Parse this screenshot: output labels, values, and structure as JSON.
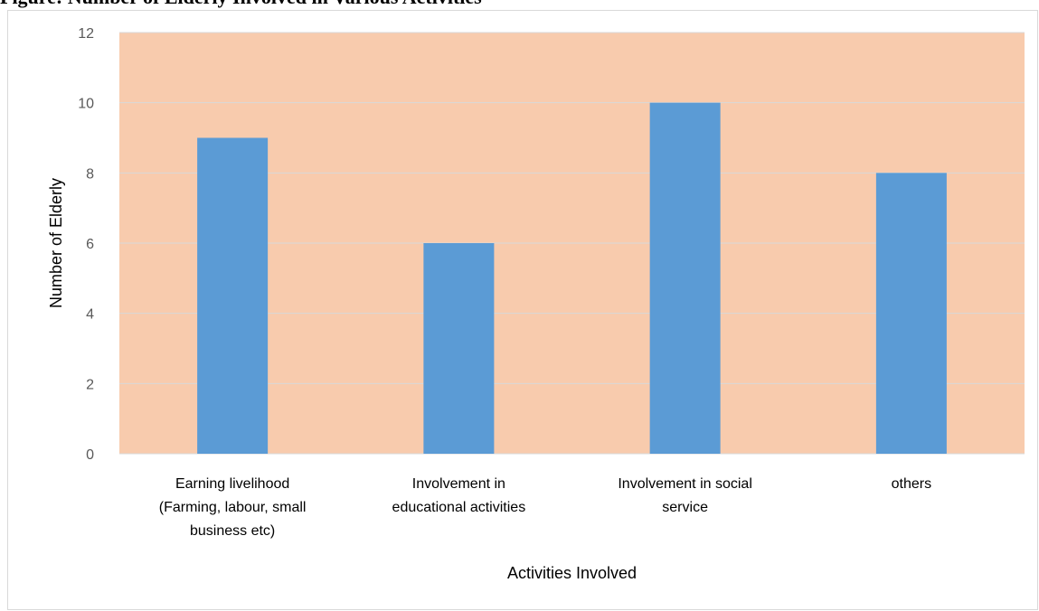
{
  "caption": "Figure: Number of Elderly Involved in Various Activities",
  "colors": {
    "plot_background": "#F8CBAD",
    "bar": "#5B9BD5",
    "gridline": "#D9D9D9"
  },
  "chart_data": {
    "type": "bar",
    "categories": [
      "Earning livelihood (Farming, labour, small business etc)",
      "Involvement in educational activities",
      "Involvement in social service",
      "others"
    ],
    "category_label_lines": [
      [
        "Earning livelihood",
        "(Farming, labour, small",
        "business etc)"
      ],
      [
        "Involvement in",
        "educational activities"
      ],
      [
        "Involvement in social",
        "service"
      ],
      [
        "others"
      ]
    ],
    "values": [
      9,
      6,
      10,
      8
    ],
    "xlabel": "Activities Involved",
    "ylabel": "Number of Elderly",
    "ylim": [
      0,
      12
    ],
    "yticks": [
      0,
      2,
      4,
      6,
      8,
      10,
      12
    ],
    "grid": true,
    "legend": "none"
  }
}
